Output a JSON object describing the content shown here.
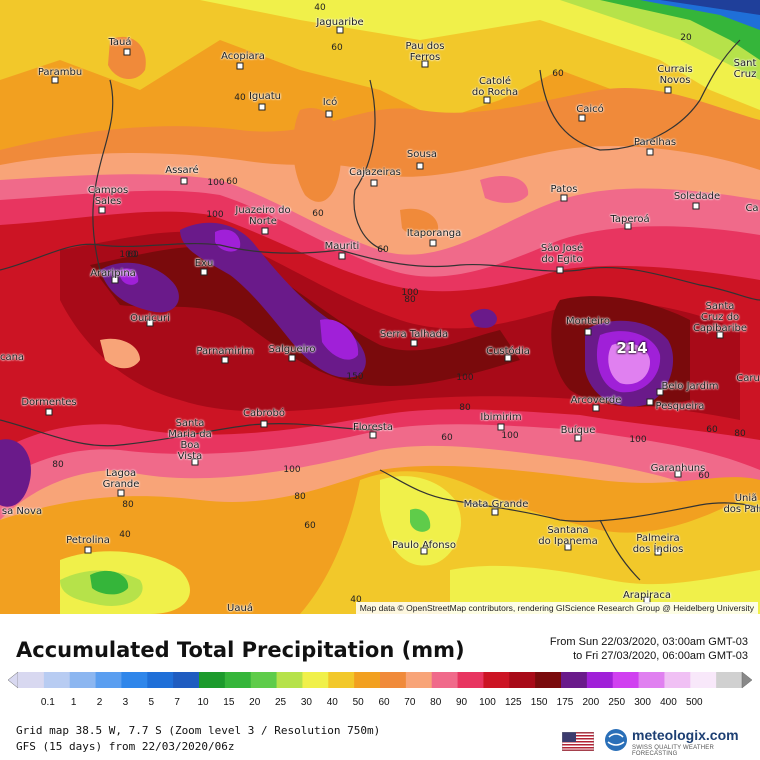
{
  "map": {
    "max_value": "214",
    "attribution": "Map data © OpenStreetMap contributors, rendering GIScience Research Group @ Heidelberg University",
    "cities": [
      {
        "name": "Tauá"
      },
      {
        "name": "Parambu"
      },
      {
        "name": "Acopiara"
      },
      {
        "name": "Jaguaribe"
      },
      {
        "name": "Pau dos\nFerros"
      },
      {
        "name": "Currais\nNovos"
      },
      {
        "name": "Sant\nCruz"
      },
      {
        "name": "Iguatu"
      },
      {
        "name": "Icó"
      },
      {
        "name": "Catolé\ndo Rocha"
      },
      {
        "name": "Caicó"
      },
      {
        "name": "Parelhas"
      },
      {
        "name": "Sousa"
      },
      {
        "name": "Cajazeiras"
      },
      {
        "name": "Assaré"
      },
      {
        "name": "Campos\nSales"
      },
      {
        "name": "Patos"
      },
      {
        "name": "Soledade"
      },
      {
        "name": "Ca"
      },
      {
        "name": "Juazeiro do\nNorte"
      },
      {
        "name": "Taperoá"
      },
      {
        "name": "Mauriti"
      },
      {
        "name": "Itaporanga"
      },
      {
        "name": "São José\ndo Egito"
      },
      {
        "name": "Exu"
      },
      {
        "name": "Araripina"
      },
      {
        "name": "Ouricuri"
      },
      {
        "name": "Monteiro"
      },
      {
        "name": "Santa\nCruz do\nCapibaribe"
      },
      {
        "name": "Serra Talhada"
      },
      {
        "name": "Parnamirim"
      },
      {
        "name": "Salgueiro"
      },
      {
        "name": "Custódia"
      },
      {
        "name": "cana"
      },
      {
        "name": "Caru"
      },
      {
        "name": "Belo Jardim"
      },
      {
        "name": "Dormentes"
      },
      {
        "name": "Arcoverde"
      },
      {
        "name": "Pesqueira"
      },
      {
        "name": "Cabrobó"
      },
      {
        "name": "Ibimirim"
      },
      {
        "name": "Santa\nMaria da\nBoa\nVista"
      },
      {
        "name": "Floresta"
      },
      {
        "name": "Buíque"
      },
      {
        "name": "Garanhuns"
      },
      {
        "name": "Lagoa\nGrande"
      },
      {
        "name": "Uniã\ndos Palm"
      },
      {
        "name": "Mata Grande"
      },
      {
        "name": "sa Nova"
      },
      {
        "name": "Santana\ndo Ipanema"
      },
      {
        "name": "Palmeira\ndos Índios"
      },
      {
        "name": "Petrolina"
      },
      {
        "name": "Paulo Afonso"
      },
      {
        "name": "Arapiraca"
      },
      {
        "name": "Uauá"
      }
    ],
    "contour_labels": [
      "40",
      "20",
      "60",
      "60",
      "60",
      "60",
      "100",
      "100",
      "60",
      "60",
      "100",
      "80",
      "100",
      "100",
      "150",
      "80",
      "100",
      "100",
      "60",
      "80",
      "80",
      "60",
      "40",
      "40",
      "100",
      "60",
      "40",
      "80",
      "80",
      "60"
    ]
  },
  "title": "Accumulated Total Precipitation (mm)",
  "period_from": "From Sun 22/03/2020, 03:00am GMT-03",
  "period_to": "to Fri 27/03/2020, 06:00am GMT-03",
  "legend": {
    "values": [
      "0.1",
      "1",
      "2",
      "3",
      "5",
      "7",
      "10",
      "15",
      "20",
      "25",
      "30",
      "40",
      "50",
      "60",
      "70",
      "80",
      "90",
      "100",
      "125",
      "150",
      "175",
      "200",
      "250",
      "300",
      "400",
      "500"
    ],
    "colors": [
      "#d8d8f0",
      "#b8ccf2",
      "#8cb6f0",
      "#5a9ef0",
      "#2f86ea",
      "#1f6fd8",
      "#1f5cc0",
      "#1c9a2c",
      "#35b53a",
      "#5fcc4a",
      "#b6e24a",
      "#f0f04a",
      "#f2c82a",
      "#f2a020",
      "#f08a3a",
      "#f8a478",
      "#f06a8a",
      "#e83560",
      "#cc1424",
      "#a80a18",
      "#7a0a0c",
      "#6a1a8a",
      "#a020d8",
      "#d040f0",
      "#e080f0",
      "#f0c0f4",
      "#f8e8fa",
      "#d0d0d0"
    ]
  },
  "footer": {
    "line1": "Grid map 38.5 W, 7.7 S (Zoom level 3 / Resolution 750m)",
    "line2": "GFS (15 days) from  22/03/2020/06z"
  },
  "brand": {
    "name": "meteologix.com",
    "tagline": "SWISS QUALITY WEATHER FORECASTING",
    "flag_icon": "us-flag-icon"
  }
}
